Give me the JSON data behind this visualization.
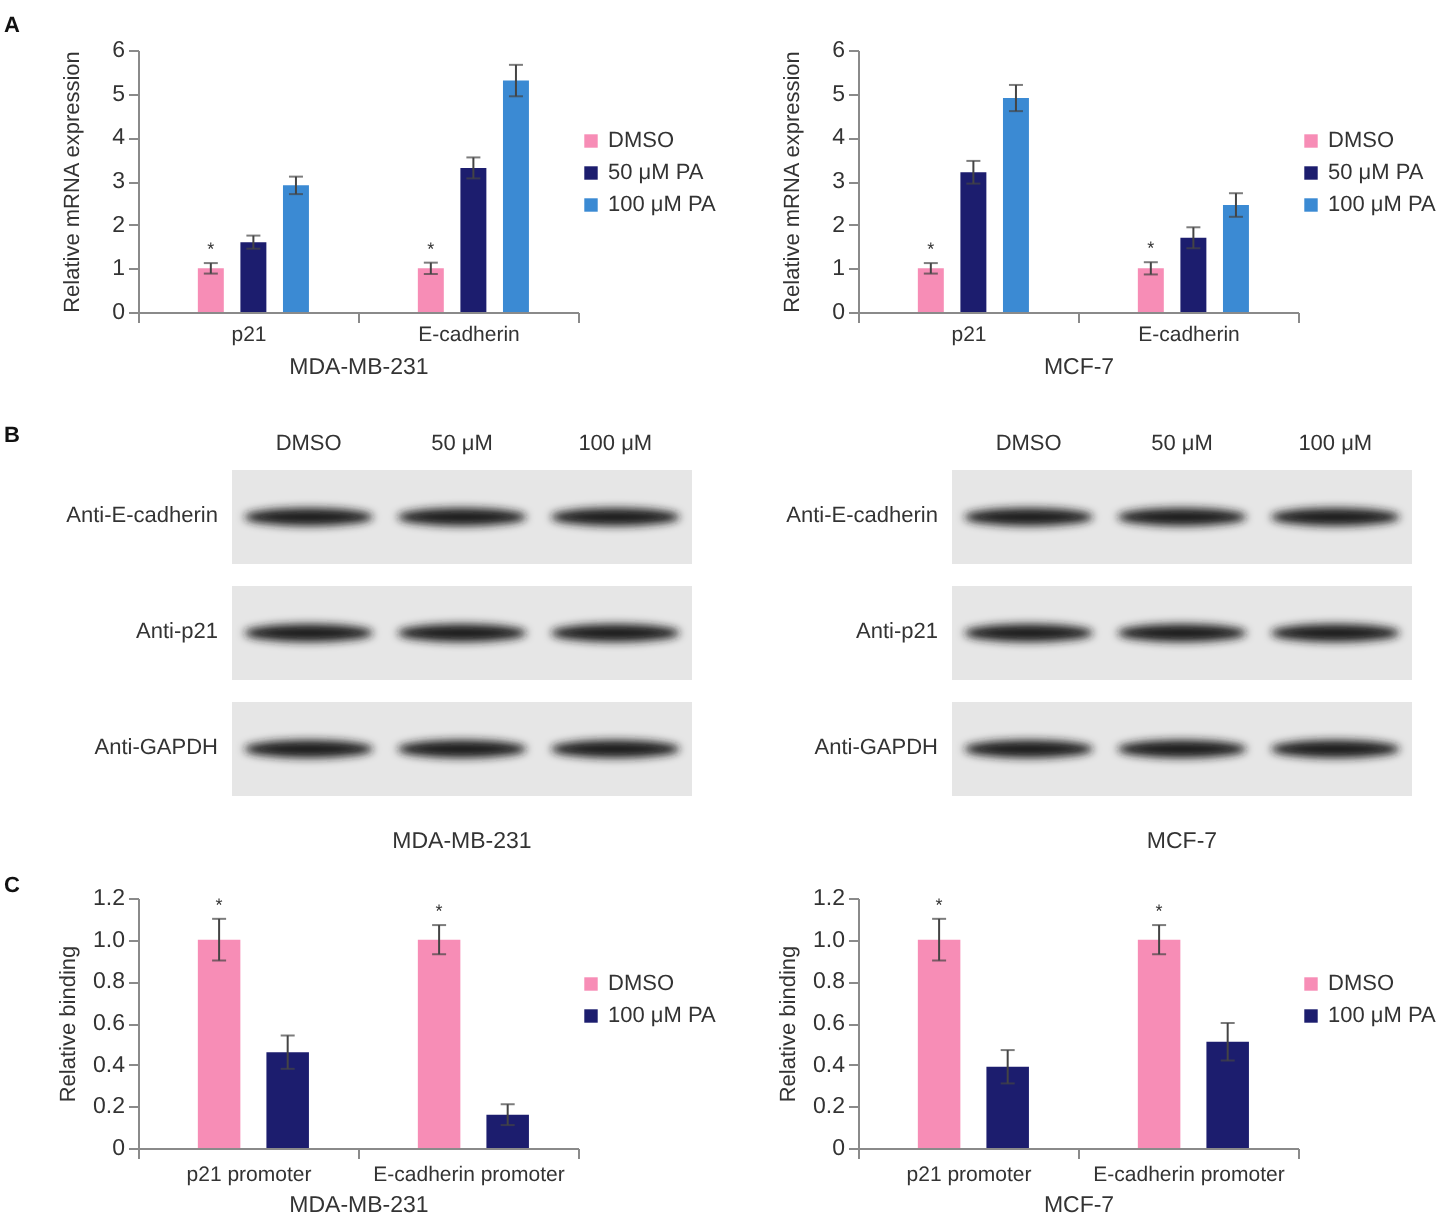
{
  "chart_data": [
    {
      "type": "bar",
      "categories": [
        "p21",
        "E-cadherin"
      ],
      "xlabel": "MDA-MB-231",
      "ylabel": "Relative mRNA expression",
      "ylim": [
        0,
        6
      ],
      "yticks": [
        0,
        1,
        2,
        3,
        4,
        5,
        6
      ],
      "legend": "right",
      "annotations": [
        "A"
      ],
      "series": [
        {
          "name": "DMSO",
          "color": "#f78db6",
          "values": [
            1.0,
            1.0
          ],
          "errors": [
            0.12,
            0.13
          ],
          "value_labels": [
            "*",
            "*"
          ]
        },
        {
          "name": "50 μM PA",
          "color": "#1c1d6e",
          "values": [
            1.6,
            3.3
          ],
          "errors": [
            0.15,
            0.24
          ]
        },
        {
          "name": "100 μM PA",
          "color": "#3b8ad3",
          "values": [
            2.9,
            5.3
          ],
          "errors": [
            0.2,
            0.36
          ]
        }
      ]
    },
    {
      "type": "bar",
      "categories": [
        "p21",
        "E-cadherin"
      ],
      "xlabel": "MCF-7",
      "ylabel": "Relative mRNA expression",
      "ylim": [
        0,
        6
      ],
      "yticks": [
        0,
        1,
        2,
        3,
        4,
        5,
        6
      ],
      "legend": "right",
      "series": [
        {
          "name": "DMSO",
          "color": "#f78db6",
          "values": [
            1.0,
            1.0
          ],
          "errors": [
            0.12,
            0.14
          ],
          "value_labels": [
            "*",
            "*"
          ]
        },
        {
          "name": "50 μM PA",
          "color": "#1c1d6e",
          "values": [
            3.2,
            1.7
          ],
          "errors": [
            0.26,
            0.24
          ]
        },
        {
          "name": "100 μM PA",
          "color": "#3b8ad3",
          "values": [
            4.9,
            2.45
          ],
          "errors": [
            0.3,
            0.27
          ]
        }
      ]
    },
    {
      "type": "other",
      "categories": [
        "DMSO",
        "50 μM",
        "100 μM"
      ],
      "y_categories": [
        "Anti-E-cadherin",
        "Anti-p21",
        "Anti-GAPDH"
      ],
      "xlabel": "MDA-MB-231",
      "annotations": [
        "B"
      ]
    },
    {
      "type": "other",
      "categories": [
        "DMSO",
        "50 μM",
        "100 μM"
      ],
      "y_categories": [
        "Anti-E-cadherin",
        "Anti-p21",
        "Anti-GAPDH"
      ],
      "xlabel": "MCF-7"
    },
    {
      "type": "bar",
      "categories": [
        "p21 promoter",
        "E-cadherin promoter"
      ],
      "xlabel": "MDA-MB-231",
      "ylabel": "Relative binding",
      "ylim": [
        0,
        1.2
      ],
      "yticks": [
        0,
        0.2,
        0.4,
        0.6,
        0.8,
        {
          "value": 1,
          "label": "1.0"
        },
        1.2
      ],
      "legend": "right",
      "annotations": [
        "C"
      ],
      "series": [
        {
          "name": "DMSO",
          "color": "#f78db6",
          "values": [
            1.0,
            1.0
          ],
          "errors": [
            0.1,
            0.07
          ],
          "value_labels": [
            "*",
            "*"
          ]
        },
        {
          "name": "100 μM PA",
          "color": "#1c1d6e",
          "values": [
            0.46,
            0.16
          ],
          "errors": [
            0.08,
            0.05
          ]
        }
      ]
    },
    {
      "type": "bar",
      "categories": [
        "p21 promoter",
        "E-cadherin promoter"
      ],
      "xlabel": "MCF-7",
      "ylabel": "Relative binding",
      "ylim": [
        0,
        1.2
      ],
      "yticks": [
        0,
        0.2,
        0.4,
        0.6,
        0.8,
        {
          "value": 1,
          "label": "1.0"
        },
        1.2
      ],
      "legend": "right",
      "series": [
        {
          "name": "DMSO",
          "color": "#f78db6",
          "values": [
            1.0,
            1.0
          ],
          "errors": [
            0.1,
            0.07
          ],
          "value_labels": [
            "*",
            "*"
          ]
        },
        {
          "name": "100 μM PA",
          "color": "#1c1d6e",
          "values": [
            0.39,
            0.51
          ],
          "errors": [
            0.08,
            0.09
          ]
        }
      ]
    }
  ]
}
